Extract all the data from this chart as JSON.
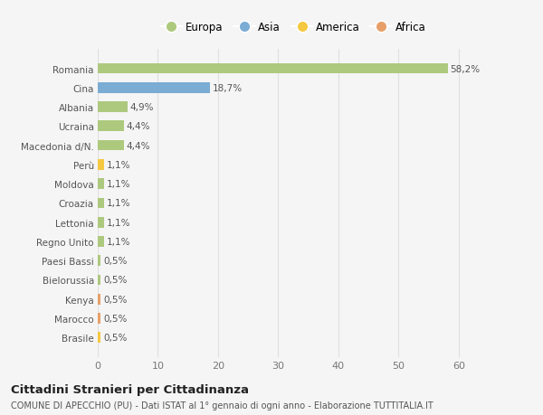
{
  "categories": [
    "Romania",
    "Cina",
    "Albania",
    "Ucraina",
    "Macedonia d/N.",
    "Perù",
    "Moldova",
    "Croazia",
    "Lettonia",
    "Regno Unito",
    "Paesi Bassi",
    "Bielorussia",
    "Kenya",
    "Marocco",
    "Brasile"
  ],
  "values": [
    58.2,
    18.7,
    4.9,
    4.4,
    4.4,
    1.1,
    1.1,
    1.1,
    1.1,
    1.1,
    0.5,
    0.5,
    0.5,
    0.5,
    0.5
  ],
  "labels": [
    "58,2%",
    "18,7%",
    "4,9%",
    "4,4%",
    "4,4%",
    "1,1%",
    "1,1%",
    "1,1%",
    "1,1%",
    "1,1%",
    "0,5%",
    "0,5%",
    "0,5%",
    "0,5%",
    "0,5%"
  ],
  "colors": [
    "#adc97e",
    "#7bacd4",
    "#adc97e",
    "#adc97e",
    "#adc97e",
    "#f5c842",
    "#adc97e",
    "#adc97e",
    "#adc97e",
    "#adc97e",
    "#adc97e",
    "#adc97e",
    "#e8a06a",
    "#e8a06a",
    "#f5c842"
  ],
  "legend": [
    {
      "label": "Europa",
      "color": "#adc97e"
    },
    {
      "label": "Asia",
      "color": "#7bacd4"
    },
    {
      "label": "America",
      "color": "#f5c842"
    },
    {
      "label": "Africa",
      "color": "#e8a06a"
    }
  ],
  "title": "Cittadini Stranieri per Cittadinanza",
  "subtitle": "COMUNE DI APECCHIO (PU) - Dati ISTAT al 1° gennaio di ogni anno - Elaborazione TUTTITALIA.IT",
  "xlim": [
    0,
    65
  ],
  "xticks": [
    0,
    10,
    20,
    30,
    40,
    50,
    60
  ],
  "bg_color": "#f5f5f5",
  "grid_color": "#e0e0e0"
}
